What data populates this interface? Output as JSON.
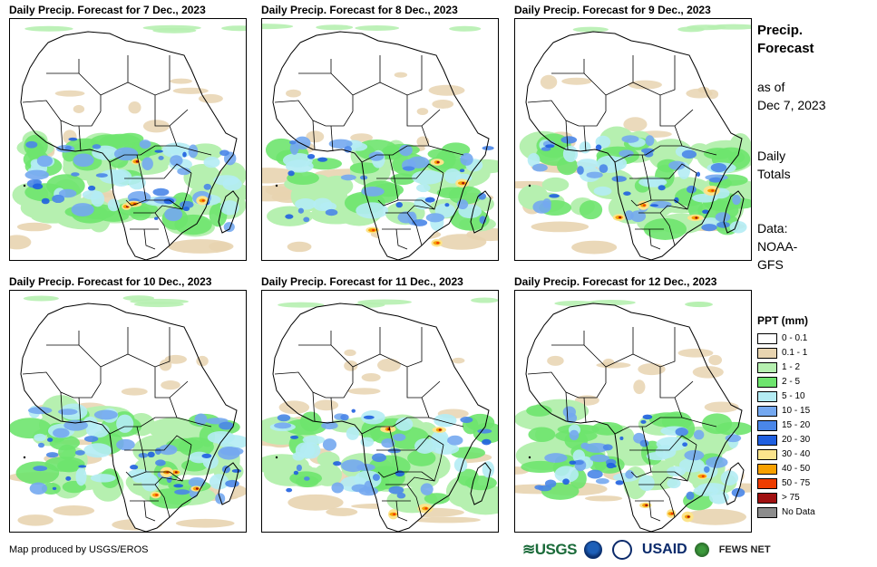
{
  "panels": [
    {
      "title": "Daily Precip. Forecast for 7 Dec., 2023",
      "intensity": 1.0
    },
    {
      "title": "Daily Precip. Forecast for 8 Dec., 2023",
      "intensity": 0.8
    },
    {
      "title": "Daily Precip. Forecast for 9 Dec., 2023",
      "intensity": 0.9
    },
    {
      "title": "Daily Precip. Forecast for 10 Dec., 2023",
      "intensity": 0.9
    },
    {
      "title": "Daily Precip. Forecast for 11 Dec., 2023",
      "intensity": 0.8
    },
    {
      "title": "Daily Precip. Forecast for 12 Dec., 2023",
      "intensity": 0.85
    }
  ],
  "side": {
    "title_line1": "Precip.",
    "title_line2": "Forecast",
    "asof_line1": "as of",
    "asof_line2": "Dec 7, 2023",
    "daily_line1": "Daily",
    "daily_line2": "Totals",
    "data_line1": "Data:",
    "data_line2": "NOAA-",
    "data_line3": "GFS"
  },
  "legend": {
    "title": "PPT (mm)",
    "items": [
      {
        "label": "0 - 0.1",
        "color": "#ffffff"
      },
      {
        "label": "0.1 - 1",
        "color": "#e8d4b0"
      },
      {
        "label": "1 - 2",
        "color": "#b6f0b0"
      },
      {
        "label": "2 - 5",
        "color": "#6ee46e"
      },
      {
        "label": "5 - 10",
        "color": "#b4ecf4"
      },
      {
        "label": "10 - 15",
        "color": "#74a8f0"
      },
      {
        "label": "15 - 20",
        "color": "#4a86e8"
      },
      {
        "label": "20 - 30",
        "color": "#1f5fe0"
      },
      {
        "label": "30 - 40",
        "color": "#fbe48c"
      },
      {
        "label": "40 - 50",
        "color": "#f7a000"
      },
      {
        "label": "50 - 75",
        "color": "#ee3c00"
      },
      {
        "label": "> 75",
        "color": "#a01010"
      },
      {
        "label": "No Data",
        "color": "#8c8c8c"
      }
    ]
  },
  "footer": {
    "credit": "Map produced by USGS/EROS",
    "logo_usgs": "≋USGS",
    "logo_usaid": "USAID",
    "logo_fews": "FEWS NET"
  }
}
